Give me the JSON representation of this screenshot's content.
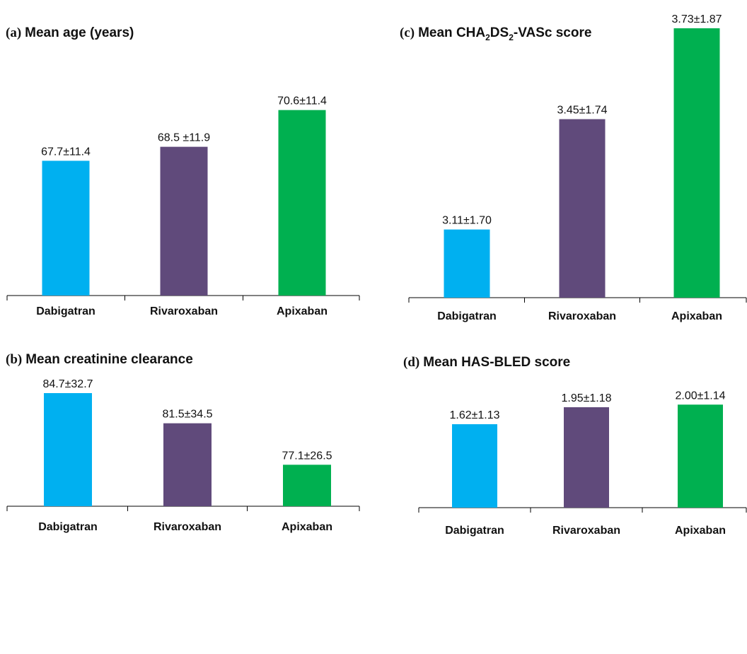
{
  "colors": {
    "dabigatran": "#00B0F0",
    "rivaroxaban": "#604A7B",
    "apixaban": "#00B050"
  },
  "chart_data": [
    {
      "type": "bar",
      "panel": "a",
      "tag": "(a)",
      "title": "Mean age (years)",
      "categories": [
        "Dabigatran",
        "Rivaroxaban",
        "Apixaban"
      ],
      "values": [
        67.7,
        68.5,
        70.6
      ],
      "labels": [
        "67.7±11.4",
        "68.5 ±11.9",
        "70.6±11.4"
      ],
      "ylim": [
        60,
        72
      ],
      "grid": false,
      "legend": "none"
    },
    {
      "type": "bar",
      "panel": "b",
      "tag": "(b)",
      "title": "Mean creatinine clearance",
      "categories": [
        "Dabigatran",
        "Rivaroxaban",
        "Apixaban"
      ],
      "values": [
        84.7,
        81.5,
        77.1
      ],
      "labels": [
        "84.7±32.7",
        "81.5±34.5",
        "77.1±26.5"
      ],
      "ylim": [
        72.7,
        84.7
      ],
      "grid": false,
      "legend": "none"
    },
    {
      "type": "bar",
      "panel": "c",
      "tag": "(c)",
      "title_parts": [
        "Mean CHA",
        "2",
        "DS",
        "2",
        "-VASc score"
      ],
      "categories": [
        "Dabigatran",
        "Rivaroxaban",
        "Apixaban"
      ],
      "values": [
        3.11,
        3.45,
        3.73
      ],
      "labels": [
        "3.11±1.70",
        "3.45±1.74",
        "3.73±1.87"
      ],
      "ylim": [
        2.9,
        3.73
      ],
      "grid": false,
      "legend": "none"
    },
    {
      "type": "bar",
      "panel": "d",
      "tag": "(d)",
      "title": "Mean HAS-BLED score",
      "categories": [
        "Dabigatran",
        "Rivaroxaban",
        "Apixaban"
      ],
      "values": [
        1.62,
        1.95,
        2.0
      ],
      "labels": [
        "1.62±1.13",
        "1.95±1.18",
        "2.00±1.14"
      ],
      "ylim": [
        0,
        2.1
      ],
      "grid": false,
      "legend": "none"
    }
  ]
}
